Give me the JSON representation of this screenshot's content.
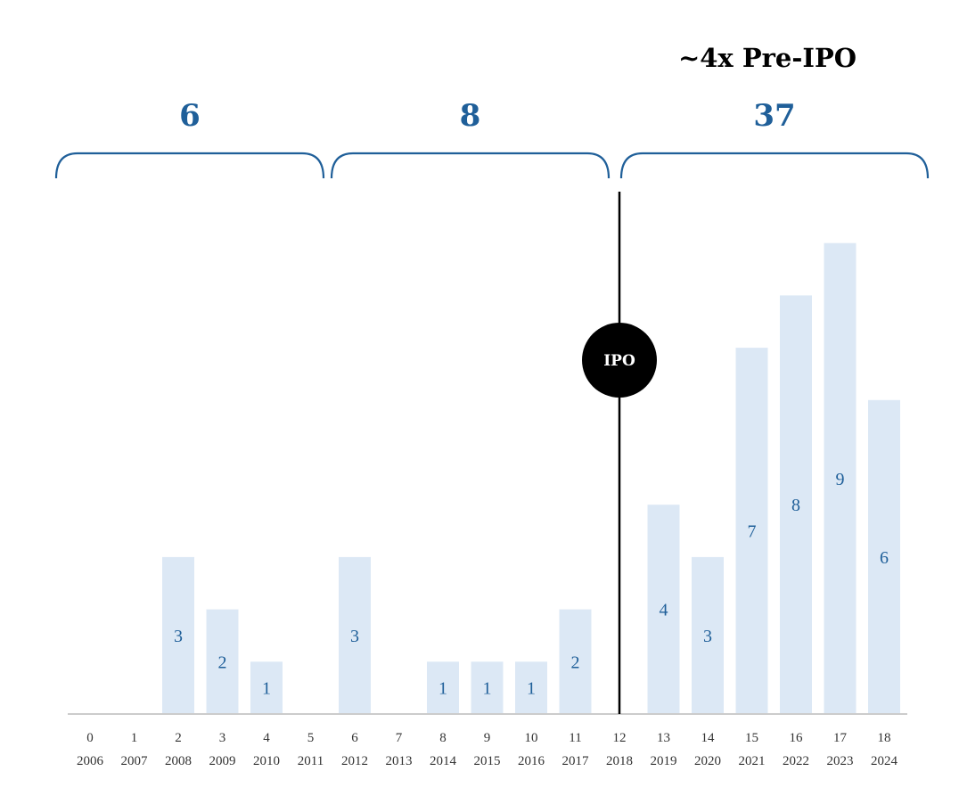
{
  "chart_data": {
    "type": "bar",
    "title": "",
    "xlabel": "",
    "ylabel": "",
    "categories": [
      "0",
      "1",
      "2",
      "3",
      "4",
      "5",
      "6",
      "7",
      "8",
      "9",
      "10",
      "11",
      "12",
      "13",
      "14",
      "15",
      "16",
      "17",
      "18"
    ],
    "years": [
      "2006",
      "2007",
      "2008",
      "2009",
      "2010",
      "2011",
      "2012",
      "2013",
      "2014",
      "2015",
      "2016",
      "2017",
      "2018",
      "2019",
      "2020",
      "2021",
      "2022",
      "2023",
      "2024"
    ],
    "values": [
      0,
      0,
      3,
      2,
      1,
      0,
      3,
      0,
      1,
      1,
      1,
      2,
      0,
      4,
      3,
      7,
      8,
      9,
      6
    ],
    "ylim": [
      0,
      9
    ],
    "grid": false,
    "legend": "none",
    "colors": {
      "bar": "#dce8f5",
      "label": "#1f5f99",
      "ipo": "#000000"
    },
    "ipo_marker": {
      "label": "IPO",
      "year": "2018"
    },
    "headline": "~4x Pre-IPO",
    "groups": [
      {
        "label": "6",
        "from": "2006",
        "to": "2011"
      },
      {
        "label": "8",
        "from": "2012",
        "to": "2017"
      },
      {
        "label": "37",
        "from": "2019",
        "to": "2024"
      }
    ]
  }
}
